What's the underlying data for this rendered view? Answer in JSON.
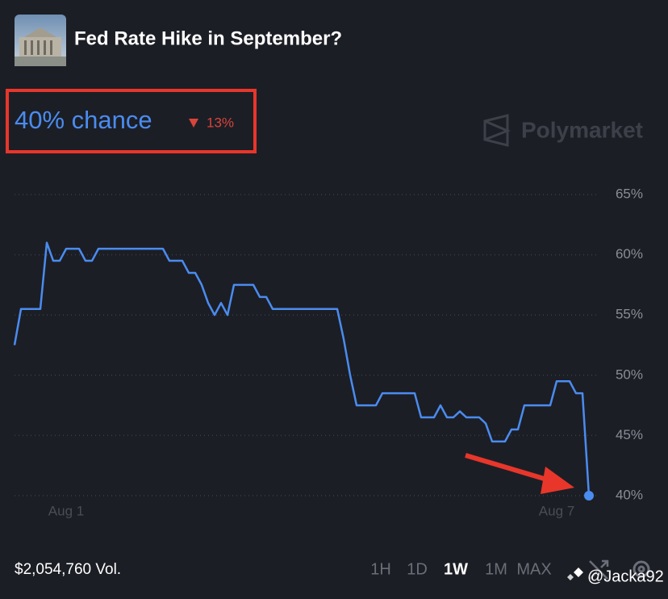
{
  "header": {
    "title": "Fed Rate Hike in September?"
  },
  "probability": {
    "label": "40% chance",
    "change": "13%"
  },
  "brand": "Polymarket",
  "chart_data": {
    "type": "line",
    "categories": [
      null,
      null,
      null,
      null,
      null,
      null,
      null,
      null,
      "Aug 1",
      null,
      null,
      null,
      null,
      null,
      null,
      null,
      null,
      null,
      null,
      null,
      null,
      null,
      null,
      null,
      null,
      null,
      null,
      null,
      null,
      null,
      null,
      null,
      null,
      null,
      null,
      null,
      null,
      null,
      null,
      null,
      null,
      null,
      null,
      null,
      null,
      null,
      null,
      null,
      null,
      null,
      null,
      null,
      null,
      null,
      null,
      null,
      null,
      null,
      null,
      null,
      null,
      null,
      null,
      null,
      null,
      null,
      null,
      null,
      null,
      null,
      null,
      null,
      null,
      null,
      null,
      null,
      null,
      null,
      null,
      null,
      null,
      null,
      null,
      null,
      "Aug 7",
      null,
      null,
      null,
      null,
      null
    ],
    "values": [
      52.5,
      55.5,
      55.5,
      55.5,
      55.5,
      61,
      59.5,
      59.5,
      60.5,
      60.5,
      60.5,
      59.5,
      59.5,
      60.5,
      60.5,
      60.5,
      60.5,
      60.5,
      60.5,
      60.5,
      60.5,
      60.5,
      60.5,
      60.5,
      59.5,
      59.5,
      59.5,
      58.5,
      58.5,
      57.5,
      56,
      55,
      56,
      55,
      57.5,
      57.5,
      57.5,
      57.5,
      56.5,
      56.5,
      55.5,
      55.5,
      55.5,
      55.5,
      55.5,
      55.5,
      55.5,
      55.5,
      55.5,
      55.5,
      55.5,
      53,
      50,
      47.5,
      47.5,
      47.5,
      47.5,
      48.5,
      48.5,
      48.5,
      48.5,
      48.5,
      48.5,
      46.5,
      46.5,
      46.5,
      47.5,
      46.5,
      46.5,
      47,
      46.5,
      46.5,
      46.5,
      46,
      44.5,
      44.5,
      44.5,
      45.5,
      45.5,
      47.5,
      47.5,
      47.5,
      47.5,
      47.5,
      49.5,
      49.5,
      49.5,
      48.5,
      48.5,
      40
    ],
    "color": "#4a8cf0",
    "ylim": [
      40,
      65
    ],
    "yticks": [
      {
        "value": 40,
        "label": "40%"
      },
      {
        "value": 45,
        "label": "45%"
      },
      {
        "value": 50,
        "label": "50%"
      },
      {
        "value": 55,
        "label": "55%"
      },
      {
        "value": 60,
        "label": "60%"
      },
      {
        "value": 65,
        "label": "65%"
      }
    ],
    "grid": true
  },
  "footer": {
    "volume": "$2,054,760 Vol.",
    "ranges": [
      "1H",
      "1D",
      "1W",
      "1M",
      "MAX"
    ],
    "selected_range": 2
  },
  "watermark": "@Jacka92"
}
